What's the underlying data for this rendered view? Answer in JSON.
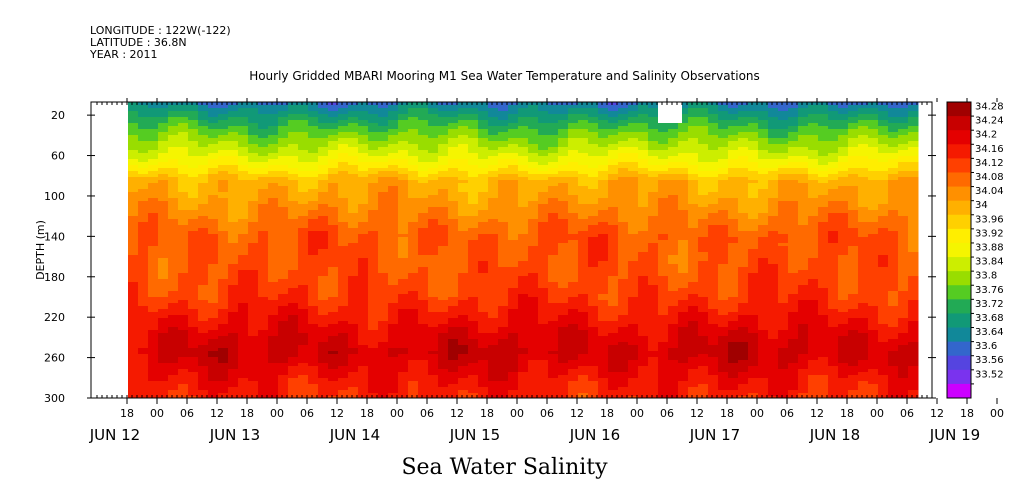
{
  "header": {
    "longitude": "LONGITUDE : 122W(-122)",
    "latitude": "LATITUDE : 36.8N",
    "year": "YEAR : 2011"
  },
  "title": "Hourly Gridded MBARI Mooring M1 Sea Water Temperature and Salinity Observations",
  "variable_label": "Sea Water Salinity",
  "chart_data": {
    "type": "heatmap",
    "title": "Hourly Gridded MBARI Mooring M1 Sea Water Temperature and Salinity Observations",
    "xlabel": "",
    "ylabel": "DEPTH (m)",
    "variable": "Sea Water Salinity",
    "y_ticks": [
      20,
      60,
      100,
      140,
      180,
      220,
      260,
      300
    ],
    "ylim": [
      300,
      7
    ],
    "y_reversed": true,
    "x_range_hours": [
      "2011-06-12 12:00",
      "2011-06-19 18:00"
    ],
    "data_range_hours": [
      "2011-06-12 21:00",
      "2011-06-19 15:00"
    ],
    "x_hour_ticks": [
      "18",
      "00",
      "06",
      "12",
      "18",
      "00",
      "06",
      "12",
      "18",
      "00",
      "06",
      "12",
      "18",
      "00",
      "06",
      "12",
      "18",
      "00",
      "06",
      "12",
      "18",
      "00",
      "06",
      "12",
      "18",
      "00",
      "06",
      "12",
      "18",
      "00",
      "06",
      "12"
    ],
    "x_day_labels": [
      "JUN 12",
      "JUN 13",
      "JUN 14",
      "JUN 15",
      "JUN 16",
      "JUN 17",
      "JUN 18",
      "JUN 19"
    ],
    "colorbar_levels": [
      "34.28",
      "34.24",
      "34.2",
      "34.16",
      "34.12",
      "34.08",
      "34.04",
      "34",
      "33.96",
      "33.92",
      "33.88",
      "33.84",
      "33.8",
      "33.76",
      "33.72",
      "33.68",
      "33.64",
      "33.6",
      "33.56",
      "33.52"
    ],
    "colorbar_colors": [
      "#a00000",
      "#c80000",
      "#e40000",
      "#f51a00",
      "#ff4000",
      "#ff6a00",
      "#ff9000",
      "#ffb000",
      "#ffd000",
      "#ffee00",
      "#f5f500",
      "#ccee00",
      "#99dd00",
      "#55cc22",
      "#22aa55",
      "#119977",
      "#118899",
      "#3366cc",
      "#5544e0",
      "#7a33ee",
      "#cc00ff"
    ],
    "mean_profile": [
      {
        "depth": 5,
        "salinity": 33.62
      },
      {
        "depth": 15,
        "salinity": 33.68
      },
      {
        "depth": 25,
        "salinity": 33.73
      },
      {
        "depth": 40,
        "salinity": 33.8
      },
      {
        "depth": 55,
        "salinity": 33.86
      },
      {
        "depth": 70,
        "salinity": 33.93
      },
      {
        "depth": 85,
        "salinity": 34.02
      },
      {
        "depth": 100,
        "salinity": 34.04
      },
      {
        "depth": 120,
        "salinity": 34.08
      },
      {
        "depth": 140,
        "salinity": 34.12
      },
      {
        "depth": 160,
        "salinity": 34.12
      },
      {
        "depth": 180,
        "salinity": 34.13
      },
      {
        "depth": 200,
        "salinity": 34.15
      },
      {
        "depth": 220,
        "salinity": 34.19
      },
      {
        "depth": 240,
        "salinity": 34.23
      },
      {
        "depth": 255,
        "salinity": 34.25
      },
      {
        "depth": 270,
        "salinity": 34.22
      },
      {
        "depth": 285,
        "salinity": 34.19
      },
      {
        "depth": 300,
        "salinity": 34.17
      }
    ],
    "grid": false,
    "legend": "right colorbar"
  }
}
